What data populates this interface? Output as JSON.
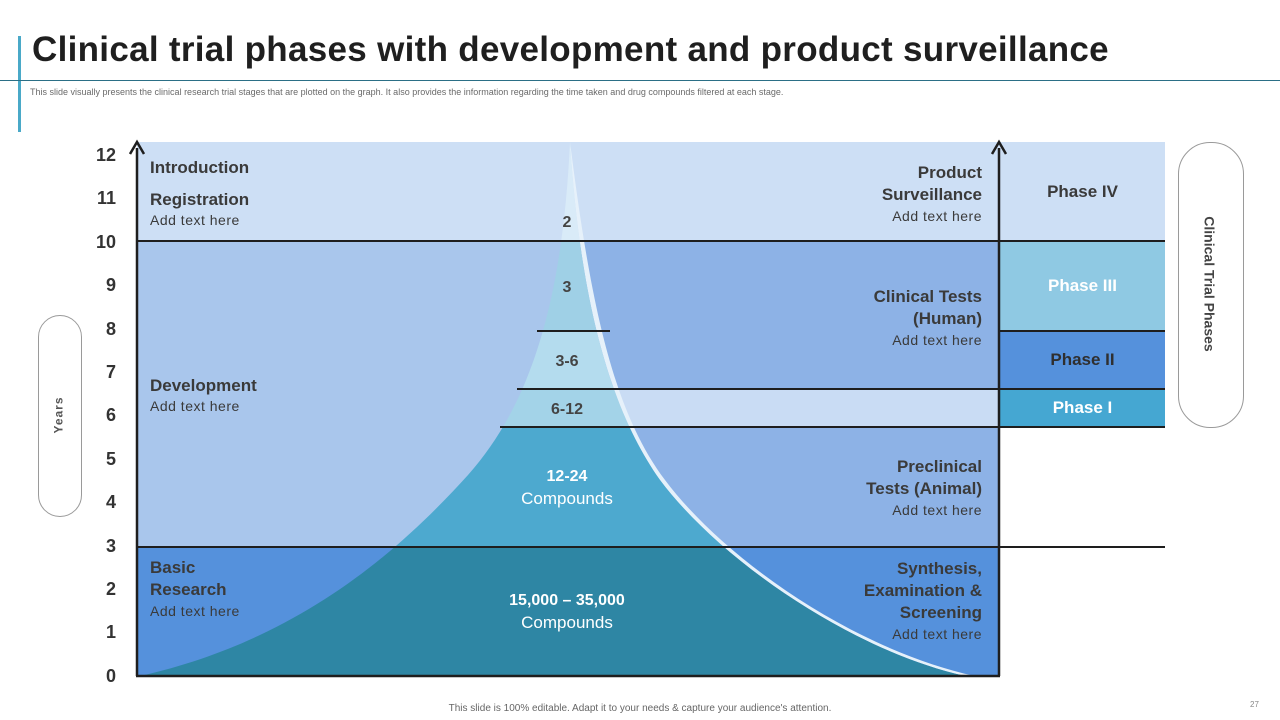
{
  "title": "Clinical trial phases with development and product surveillance",
  "subtitle": "This slide visually presents the clinical research trial stages that are plotted on the graph. It also provides the information regarding the time taken and drug compounds filtered at each stage.",
  "y_axis": {
    "label": "Years",
    "ticks": [
      "12",
      "11",
      "10",
      "9",
      "8",
      "7",
      "6",
      "5",
      "4",
      "3",
      "2",
      "1",
      "0"
    ]
  },
  "left_stages": {
    "introduction": "Introduction",
    "registration": "Registration",
    "registration_text": "Add text here",
    "development": "Development",
    "development_text": "Add text here",
    "basic_research_line1": "Basic",
    "basic_research_line2": "Research",
    "basic_research_text": "Add text here"
  },
  "compounds": {
    "c1": "2",
    "c2": "3",
    "c3": "3-6",
    "c4": "6-12",
    "c5_line1": "12-24",
    "c5_line2": "Compounds",
    "c6_line1": "15,000 – 35,000",
    "c6_line2": "Compounds"
  },
  "right_stages": {
    "product_line1": "Product",
    "product_line2": "Surveillance",
    "product_text": "Add text here",
    "clinical_line1": "Clinical Tests",
    "clinical_line2": "(Human)",
    "clinical_text": "Add text here",
    "preclinical_line1": "Preclinical",
    "preclinical_line2": "Tests (Animal)",
    "preclinical_text": "Add text here",
    "synthesis_line1": "Synthesis,",
    "synthesis_line2": "Examination &",
    "synthesis_line3": "Screening",
    "synthesis_text": "Add text here"
  },
  "phases": {
    "label": "Clinical Trial Phases",
    "phase4": "Phase IV",
    "phase3": "Phase III",
    "phase2": "Phase II",
    "phase1": "Phase I"
  },
  "colors": {
    "band_top": "#cddff5",
    "band_mid": "#a9c6ec",
    "band_mid_right": "#8db2e6",
    "band_bottom": "#5591dc",
    "band_phase1_row": "#c9dcf4",
    "funnel_top": "#d9ebf8",
    "funnel_upper": "#9fd0e6",
    "funnel_mid": "#b4dcee",
    "funnel_lower": "#4da9cf",
    "funnel_bottom": "#2e86a4",
    "phase4": "#cddff5",
    "phase3": "#8fc9e3",
    "phase2": "#5591dc",
    "phase1": "#45a7d2"
  },
  "footer": "This slide is 100% editable. Adapt it to your needs & capture your audience's attention.",
  "page_number": "27"
}
